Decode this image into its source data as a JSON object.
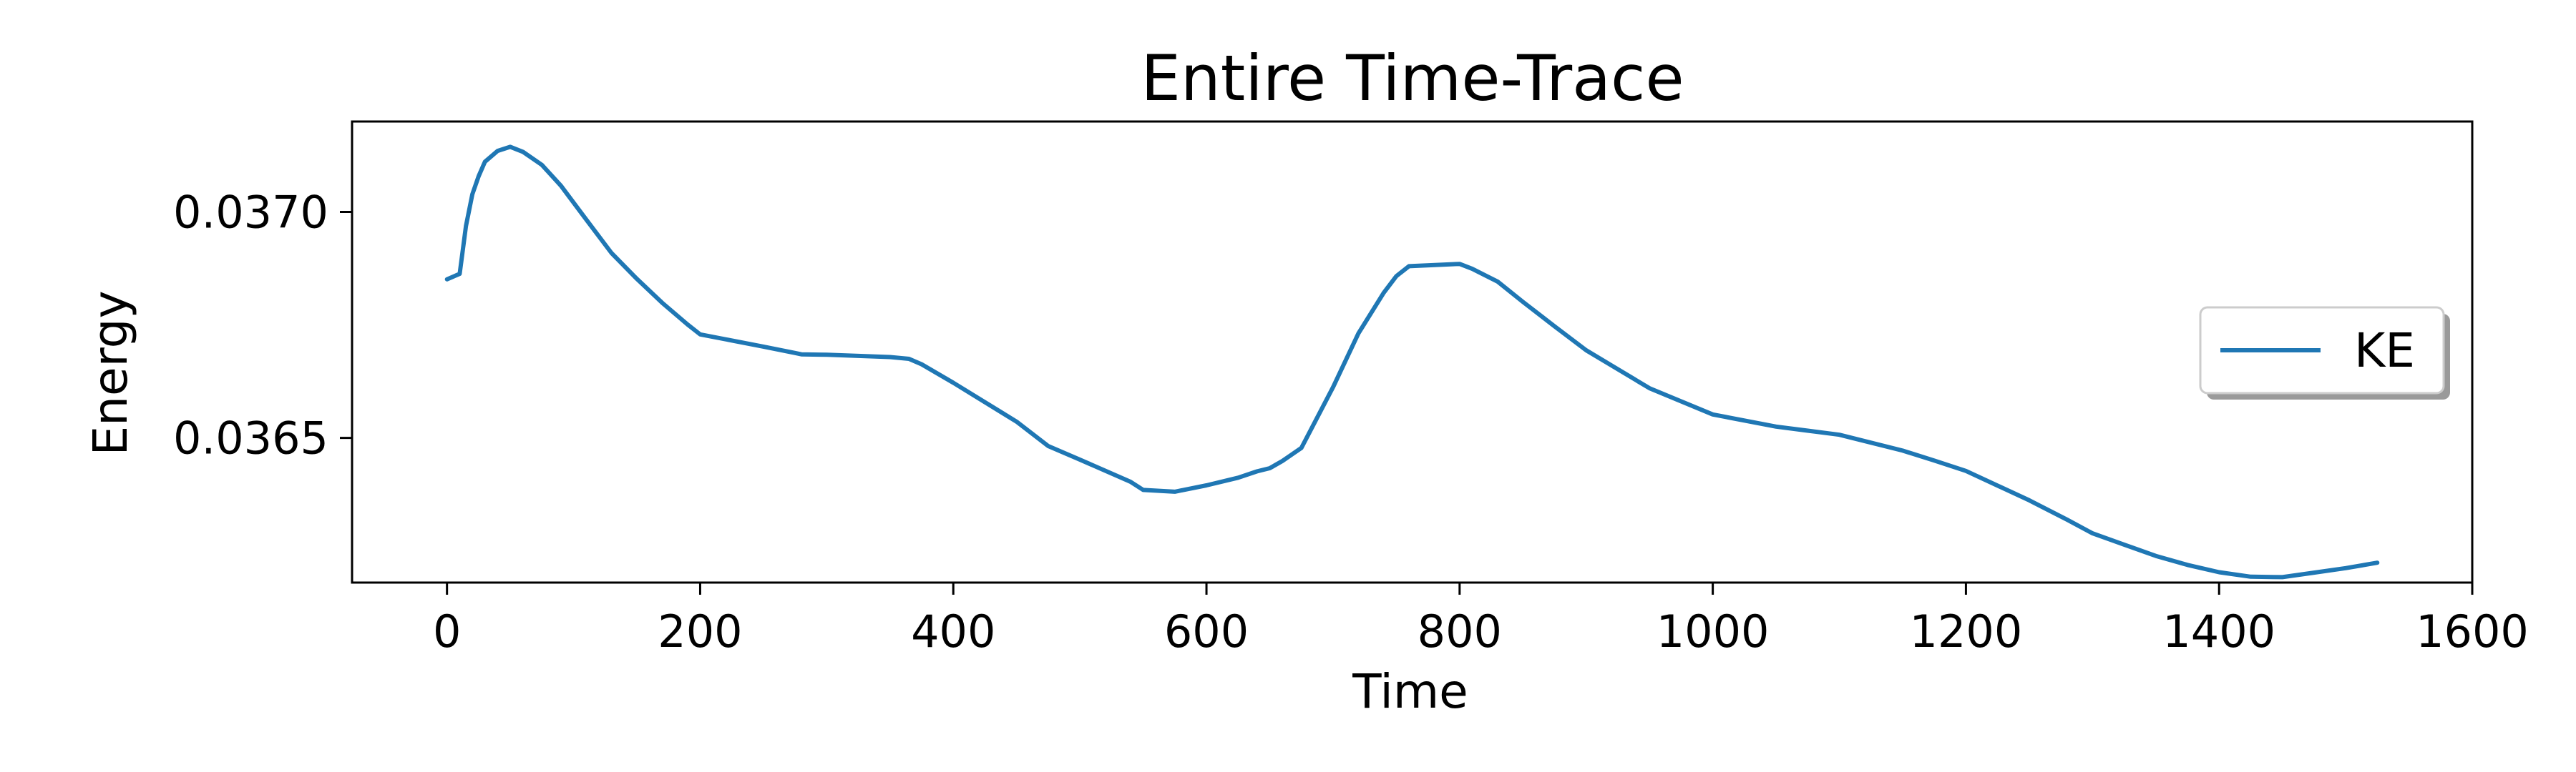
{
  "chart_data": {
    "type": "line",
    "title": "Entire Time-Trace",
    "xlabel": "Time",
    "ylabel": "Energy",
    "xlim": [
      -75,
      1600
    ],
    "ylim": [
      0.03618,
      0.0372
    ],
    "x_ticks": [
      0,
      200,
      400,
      600,
      800,
      1000,
      1200,
      1400,
      1600
    ],
    "x_tick_labels": [
      "0",
      "200",
      "400",
      "600",
      "800",
      "1000",
      "1200",
      "1400",
      "1600"
    ],
    "y_ticks": [
      0.0365,
      0.037
    ],
    "y_tick_labels": [
      "0.0365",
      "0.0370"
    ],
    "grid": false,
    "legend": {
      "placement": "center-right",
      "entries": [
        "KE"
      ]
    },
    "colors": {
      "KE": "#1f77b4"
    },
    "series": [
      {
        "name": "KE",
        "x": [
          0,
          10,
          15,
          20,
          25,
          30,
          40,
          50,
          60,
          75,
          90,
          110,
          130,
          150,
          170,
          190,
          200,
          250,
          275,
          280,
          300,
          350,
          365,
          375,
          400,
          450,
          475,
          500,
          540,
          550,
          575,
          600,
          625,
          640,
          650,
          660,
          675,
          700,
          720,
          740,
          750,
          760,
          800,
          810,
          830,
          850,
          875,
          900,
          950,
          1000,
          1050,
          1075,
          1100,
          1150,
          1175,
          1200,
          1250,
          1280,
          1300,
          1325,
          1350,
          1375,
          1400,
          1425,
          1450,
          1475,
          1500,
          1525
        ],
        "y": [
          0.036851,
          0.036863,
          0.036969,
          0.037039,
          0.037079,
          0.037111,
          0.037135,
          0.037144,
          0.037133,
          0.037104,
          0.037058,
          0.036983,
          0.036909,
          0.036852,
          0.036799,
          0.036751,
          0.036729,
          0.036702,
          0.036688,
          0.036685,
          0.036684,
          0.036679,
          0.036675,
          0.036663,
          0.036622,
          0.036536,
          0.036482,
          0.036452,
          0.036403,
          0.036385,
          0.036381,
          0.036395,
          0.036412,
          0.036426,
          0.036433,
          0.036449,
          0.036478,
          0.036612,
          0.036731,
          0.036821,
          0.036858,
          0.03688,
          0.036885,
          0.036874,
          0.036846,
          0.036801,
          0.036747,
          0.036694,
          0.03661,
          0.036552,
          0.036525,
          0.036516,
          0.036507,
          0.036472,
          0.03645,
          0.036427,
          0.036362,
          0.036319,
          0.036289,
          0.036264,
          0.036239,
          0.036219,
          0.036203,
          0.036193,
          0.036192,
          0.036202,
          0.036212,
          0.036224
        ]
      }
    ]
  }
}
